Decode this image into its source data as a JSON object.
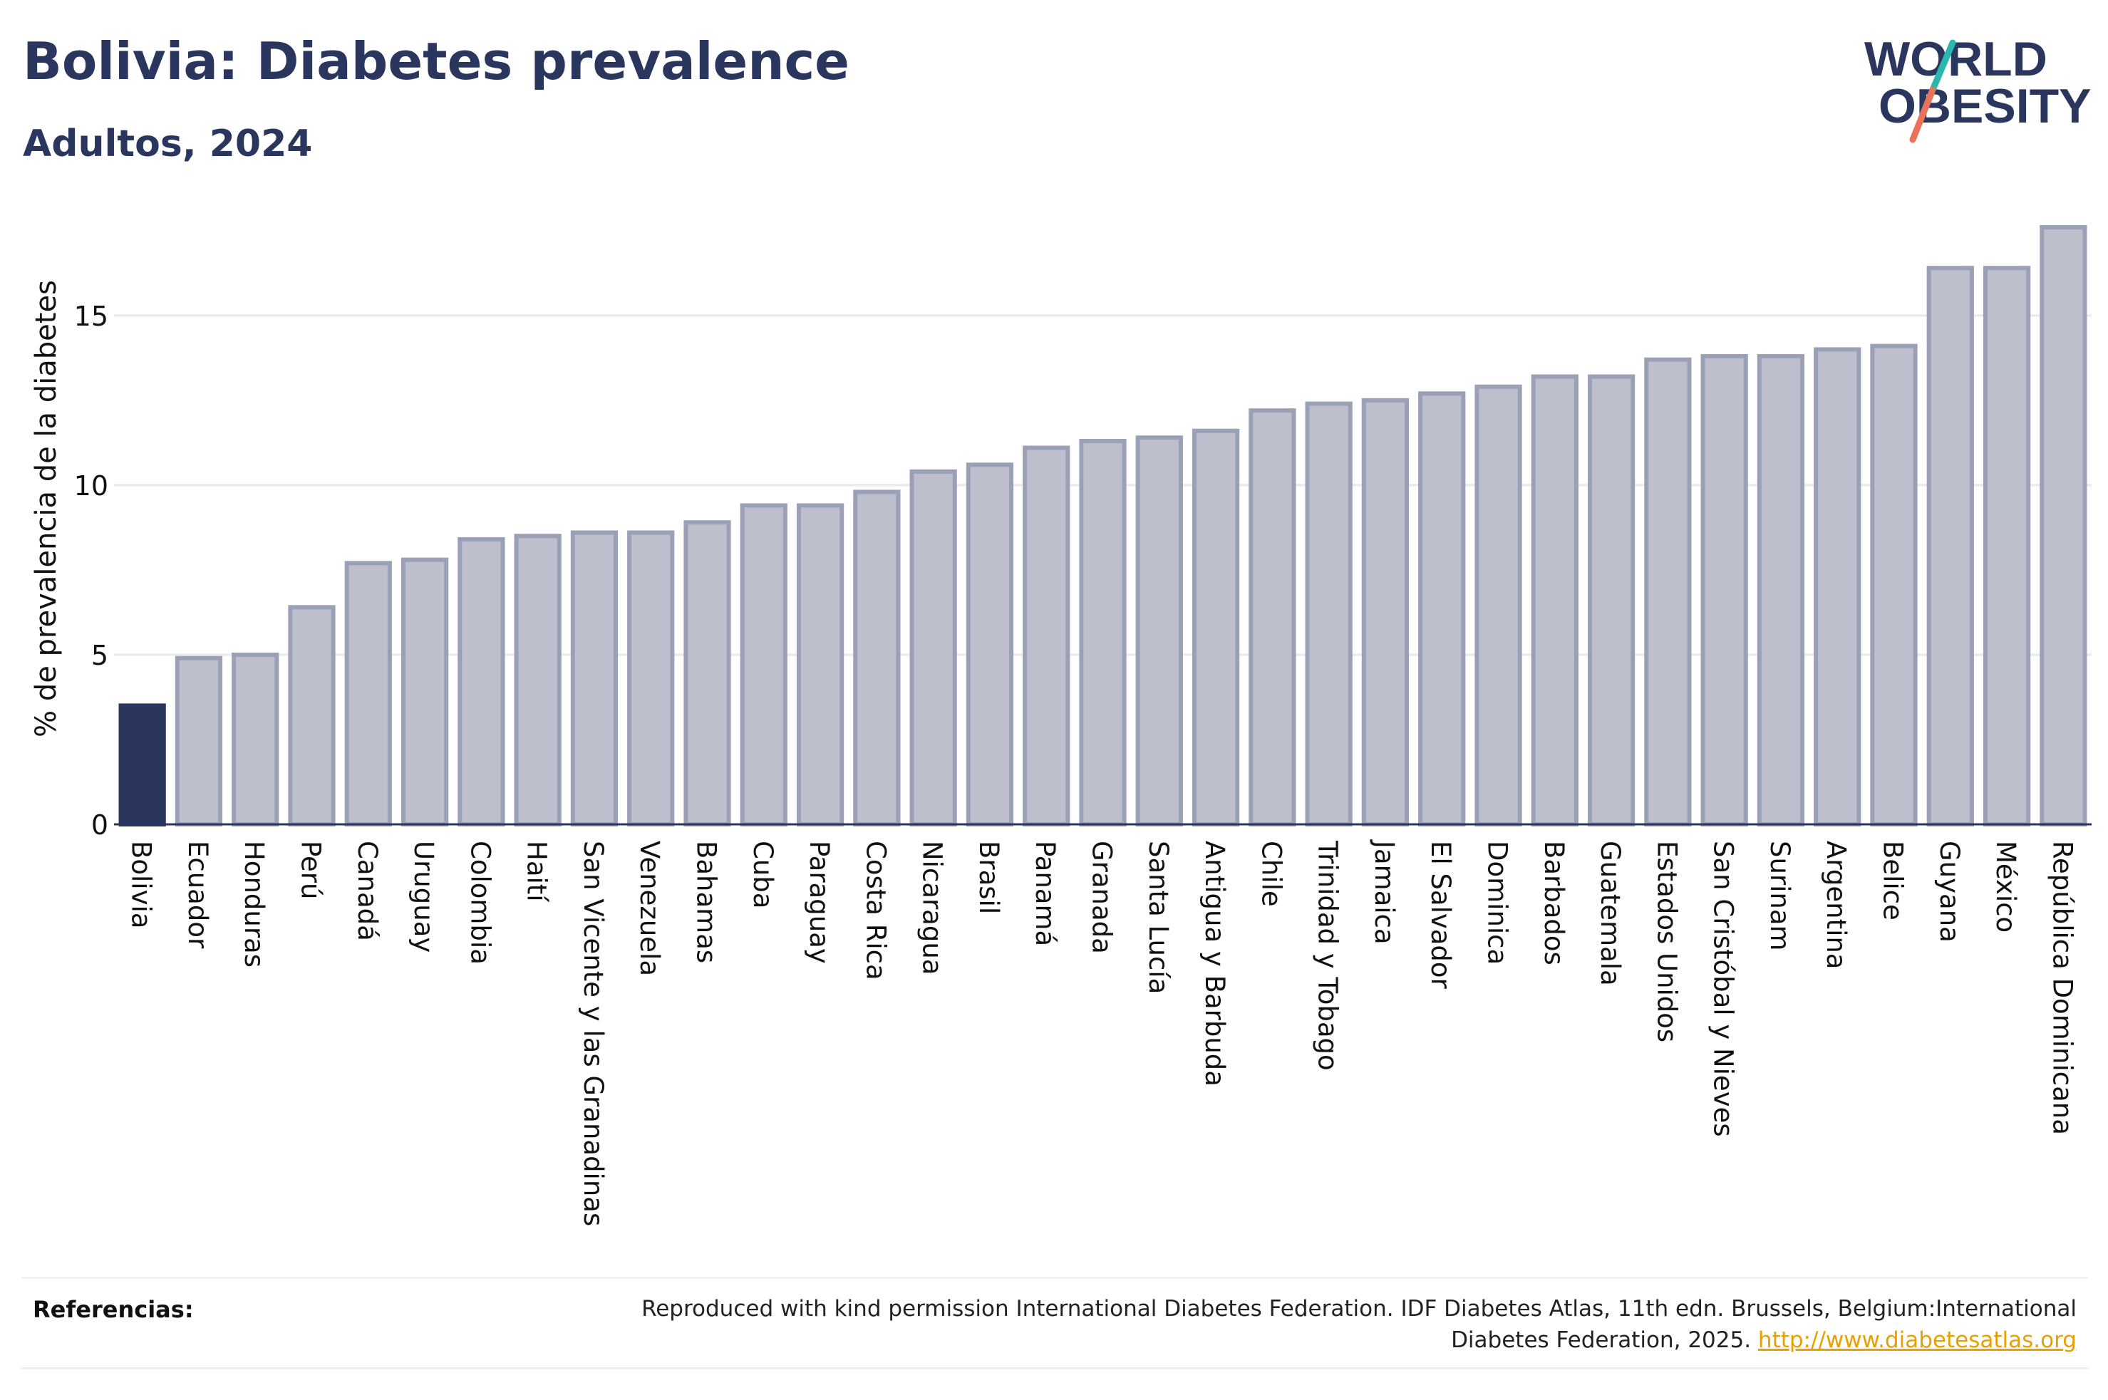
{
  "header": {
    "title": "Bolivia: Diabetes prevalence",
    "subtitle": "Adultos, 2024"
  },
  "logo": {
    "line1": "WORLD",
    "line2": "OBESITY"
  },
  "colors": {
    "highlight": "#2b365e",
    "bar_fill": "#bdc0cc",
    "bar_stroke": "#9aa0b5",
    "grid": "#e6e8ec",
    "logo_slash_teal": "#2ab7b0",
    "logo_slash_coral": "#e8735a",
    "link": "#e8a000"
  },
  "chart_data": {
    "type": "bar",
    "ylabel": "% de prevalencia de la diabetes",
    "xlabel": "",
    "ylim": [
      0,
      18
    ],
    "yticks": [
      0,
      5,
      10,
      15
    ],
    "grid": true,
    "highlight_category": "Bolivia",
    "categories": [
      "Bolivia",
      "Ecuador",
      "Honduras",
      "Perú",
      "Canadá",
      "Uruguay",
      "Colombia",
      "Haití",
      "San Vicente y las Granadinas",
      "Venezuela",
      "Bahamas",
      "Cuba",
      "Paraguay",
      "Costa Rica",
      "Nicaragua",
      "Brasil",
      "Panamá",
      "Granada",
      "Santa Lucía",
      "Antigua y Barbuda",
      "Chile",
      "Trinidad y Tobago",
      "Jamaica",
      "El Salvador",
      "Dominica",
      "Barbados",
      "Guatemala",
      "Estados Unidos",
      "San Cristóbal y Nieves",
      "Surinam",
      "Argentina",
      "Belice",
      "Guyana",
      "México",
      "República Dominicana"
    ],
    "values": [
      3.5,
      4.9,
      5.0,
      6.4,
      7.7,
      7.8,
      8.4,
      8.5,
      8.6,
      8.6,
      8.9,
      9.4,
      9.4,
      9.8,
      10.4,
      10.6,
      11.1,
      11.3,
      11.4,
      11.6,
      12.2,
      12.4,
      12.5,
      12.7,
      12.9,
      13.2,
      13.2,
      13.7,
      13.8,
      13.8,
      14.0,
      14.1,
      16.4,
      16.4,
      17.6
    ]
  },
  "footer": {
    "label": "Referencias:",
    "text": "Reproduced with kind permission International Diabetes Federation. IDF Diabetes Atlas, 11th edn. Brussels, Belgium:International Diabetes Federation, 2025. ",
    "link": "http://www.diabetesatlas.org"
  }
}
